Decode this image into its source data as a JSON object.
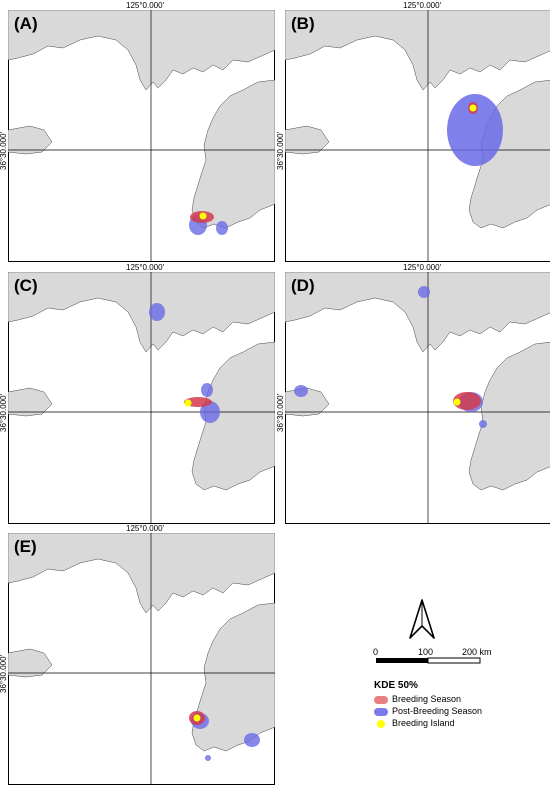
{
  "panels": [
    {
      "id": "A",
      "label": "(A)"
    },
    {
      "id": "B",
      "label": "(B)"
    },
    {
      "id": "C",
      "label": "(C)"
    },
    {
      "id": "D",
      "label": "(D)"
    },
    {
      "id": "E",
      "label": "(E)"
    }
  ],
  "graticule": {
    "longitude_label": "125°0.000'",
    "latitude_label": "36°30.000'"
  },
  "legend": {
    "title": "KDE 50%",
    "items": [
      {
        "label": "Breeding Season",
        "color": "#e88080"
      },
      {
        "label": "Post-Breeding Season",
        "color": "#7b7bea"
      },
      {
        "label": "Breeding Island",
        "color": "#ffff00"
      }
    ]
  },
  "scale_bar": {
    "ticks": [
      "0",
      "100",
      "200 km"
    ]
  },
  "north_arrow": {
    "icon": "north-arrow-icon"
  },
  "colors": {
    "land": "#d9d9d9",
    "sea": "#ffffff",
    "breeding": "#d2394d",
    "post_breeding": "#6a6ae6",
    "island": "#ffff00"
  }
}
